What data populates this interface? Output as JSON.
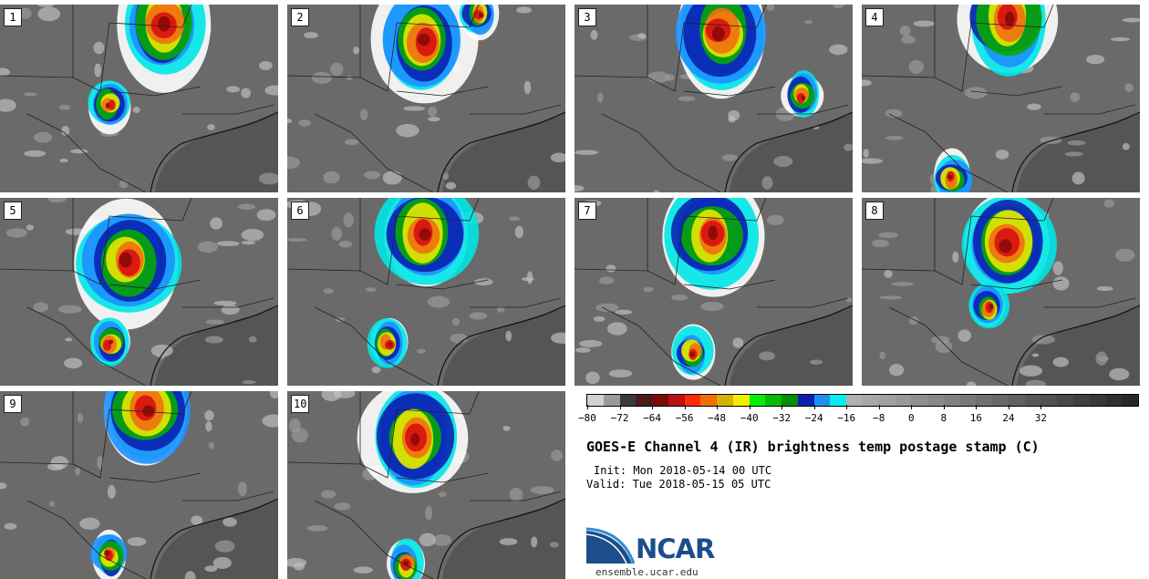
{
  "panels": [
    {
      "label": "1"
    },
    {
      "label": "2"
    },
    {
      "label": "3"
    },
    {
      "label": "4"
    },
    {
      "label": "5"
    },
    {
      "label": "6"
    },
    {
      "label": "7"
    },
    {
      "label": "8"
    },
    {
      "label": "9"
    },
    {
      "label": "10"
    }
  ],
  "colorbar": {
    "colors": [
      "#d2d2d2",
      "#9a9a9a",
      "#3a3a3a",
      "#4b1a1a",
      "#7a0b0b",
      "#b81212",
      "#ff2b05",
      "#f06e05",
      "#d4b205",
      "#f2ee05",
      "#05ee05",
      "#05bb05",
      "#058d05",
      "#0a1fad",
      "#1f8ff0",
      "#05eeee",
      "#b0b0b0",
      "#a8a8a8",
      "#a0a0a0",
      "#989898",
      "#909090",
      "#888888",
      "#808080",
      "#787878",
      "#707070",
      "#686868",
      "#606060",
      "#585858",
      "#505050",
      "#484848",
      "#404040",
      "#383838",
      "#303030",
      "#282828"
    ],
    "ticks": [
      "−80",
      "−72",
      "−64",
      "−56",
      "−48",
      "−40",
      "−32",
      "−24",
      "−16",
      "−8",
      "0",
      "8",
      "16",
      "24",
      "32"
    ]
  },
  "title": "GOES-E Channel 4 (IR) brightness temp postage stamp (C)",
  "init": "Init: Mon 2018-05-14 00 UTC",
  "valid": "Valid: Tue 2018-05-15 05 UTC",
  "logo": {
    "text": "NCAR",
    "color": "#1c4d8c",
    "accent": "#2f8fd1"
  },
  "site": "ensemble.ucar.edu"
}
